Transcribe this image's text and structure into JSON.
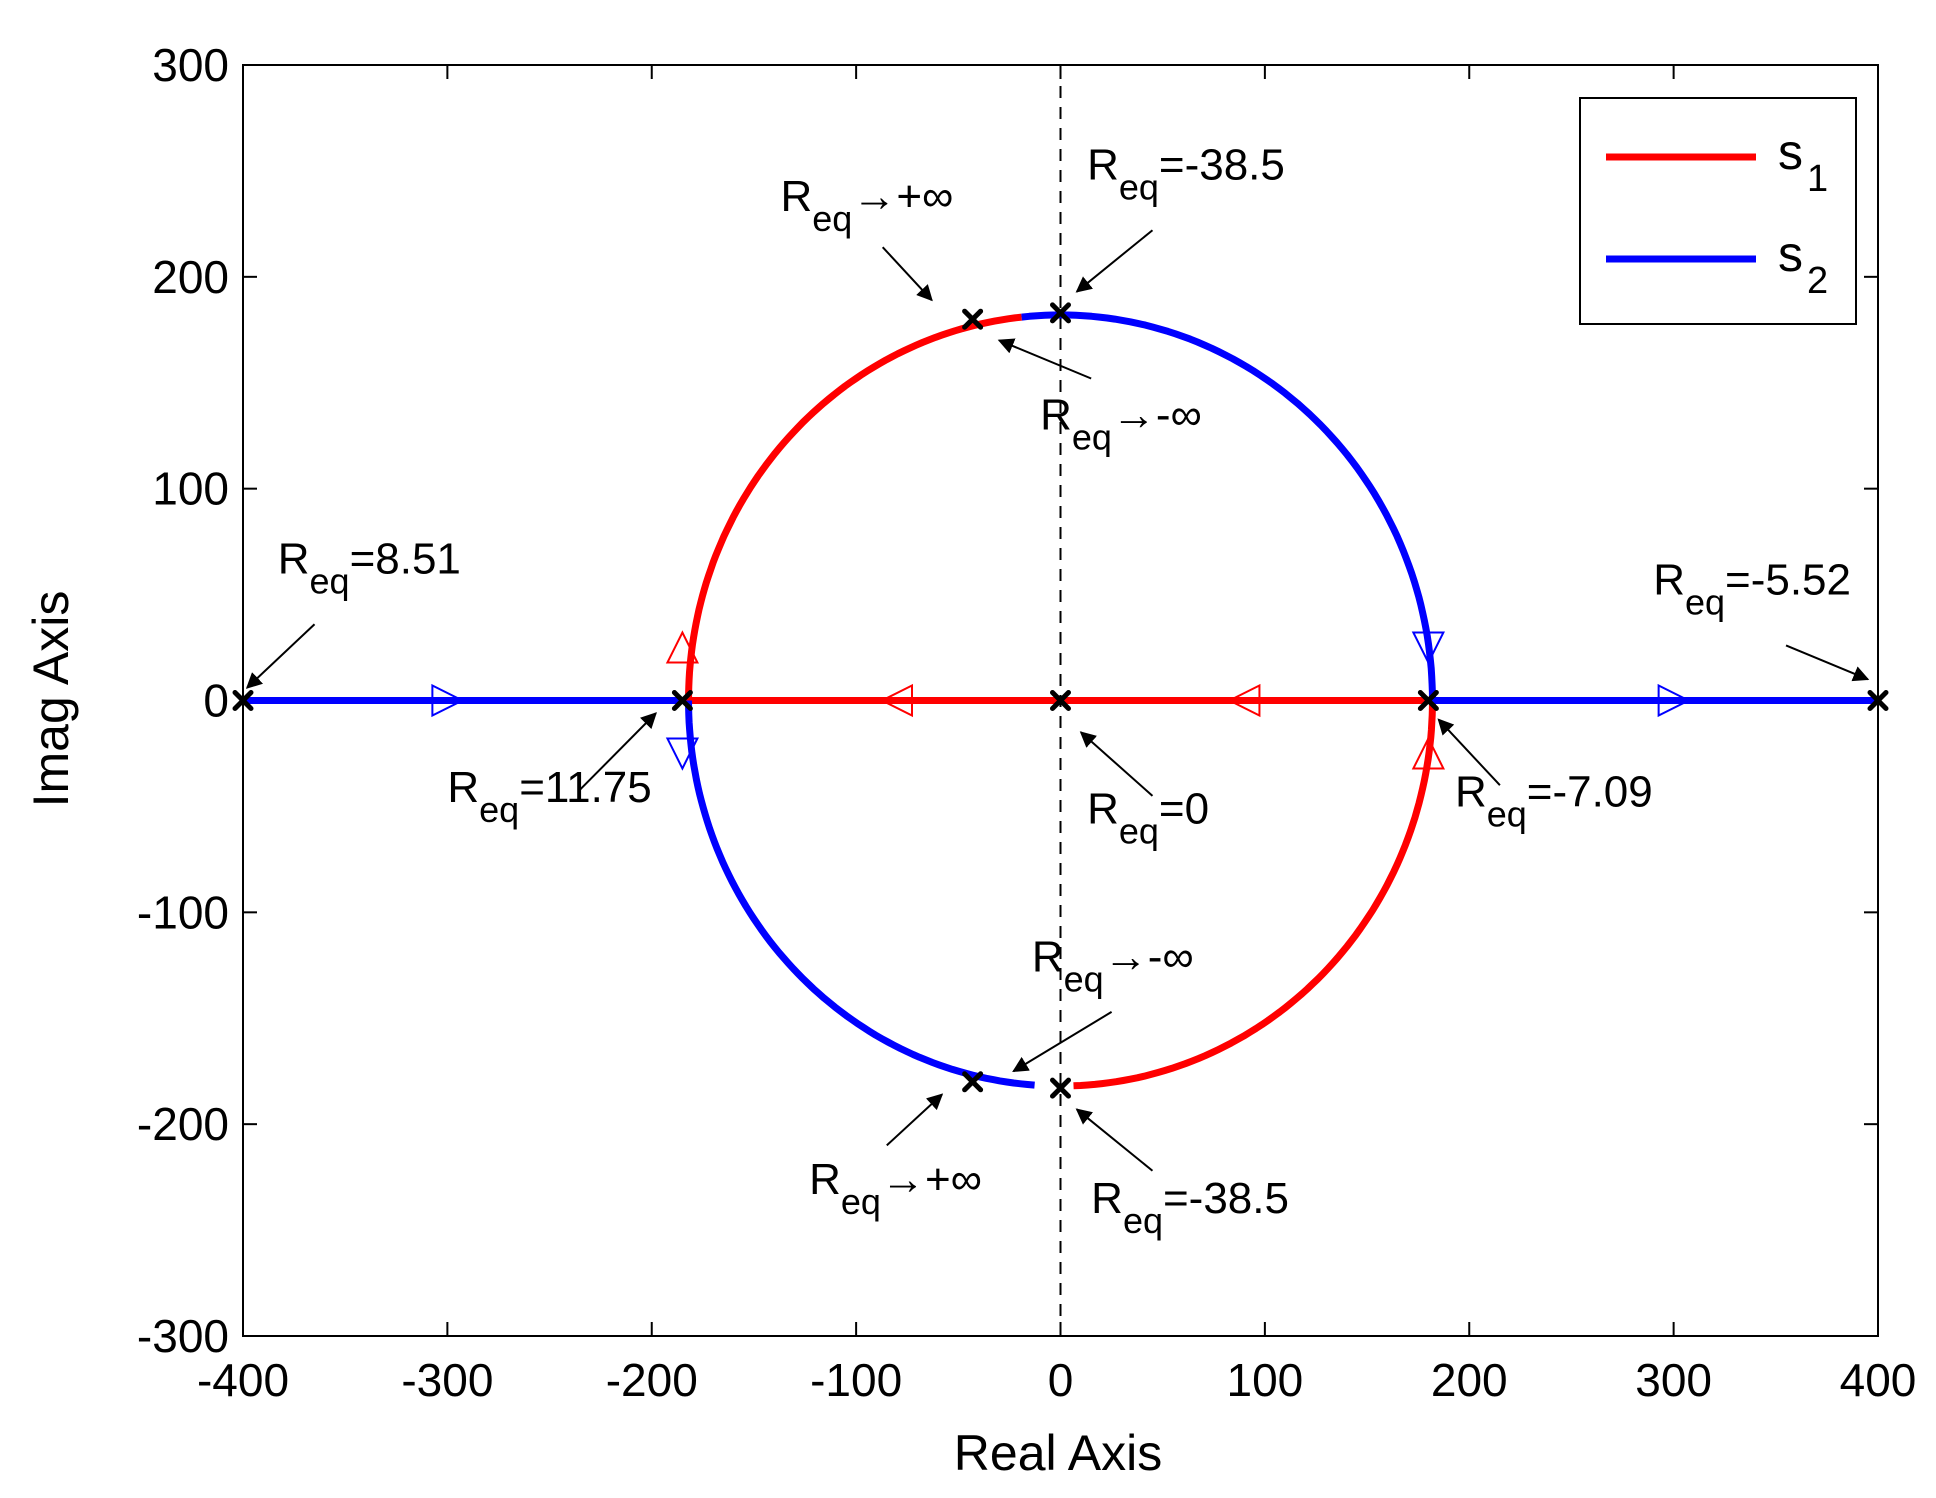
{
  "chart_data": {
    "type": "line",
    "title": "",
    "xlabel": "Real Axis",
    "ylabel": "Imag Axis",
    "xlim": [
      -400,
      400
    ],
    "ylim": [
      -300,
      300
    ],
    "xticks": [
      -400,
      -300,
      -200,
      -100,
      0,
      100,
      200,
      300,
      400
    ],
    "yticks": [
      -300,
      -200,
      -100,
      0,
      100,
      200,
      300
    ],
    "xtick_labels": [
      "-400",
      "-300",
      "-200",
      "-100",
      "0",
      "100",
      "200",
      "300",
      "400"
    ],
    "ytick_labels": [
      "-300",
      "-200",
      "-100",
      "0",
      "100",
      "200",
      "300"
    ],
    "grid": false,
    "legend_position": "top-right",
    "colors": {
      "s1": "#ff0000",
      "s2": "#0000ff",
      "marker": "#000000"
    },
    "series": [
      {
        "name": "s",
        "sub": "1",
        "color": "#ff0000",
        "segments": [
          {
            "kind": "line",
            "points": [
              [
                -185,
                0
              ],
              [
                180,
                0
              ]
            ]
          },
          {
            "kind": "arc",
            "cx": 0,
            "r": 182,
            "from_deg": 180,
            "to_deg": 96
          },
          {
            "kind": "arc",
            "cx": 0,
            "r": 182,
            "from_deg": 0,
            "to_deg": -88
          }
        ],
        "direction_markers": [
          {
            "x": -80,
            "y": 0,
            "dir": "left"
          },
          {
            "x": 90,
            "y": 0,
            "dir": "left"
          },
          {
            "x": -185,
            "y": 25,
            "dir": "up"
          },
          {
            "x": 180,
            "y": -25,
            "dir": "up"
          }
        ]
      },
      {
        "name": "s",
        "sub": "2",
        "color": "#0000ff",
        "segments": [
          {
            "kind": "line",
            "points": [
              [
                -400,
                0
              ],
              [
                -185,
                0
              ]
            ]
          },
          {
            "kind": "line",
            "points": [
              [
                180,
                0
              ],
              [
                400,
                0
              ]
            ]
          },
          {
            "kind": "arc",
            "cx": 0,
            "r": 182,
            "from_deg": 96,
            "to_deg": 0
          },
          {
            "kind": "arc",
            "cx": 0,
            "r": 182,
            "from_deg": 180,
            "to_deg": 266
          }
        ],
        "direction_markers": [
          {
            "x": -300,
            "y": 0,
            "dir": "right"
          },
          {
            "x": 300,
            "y": 0,
            "dir": "right"
          },
          {
            "x": -185,
            "y": -25,
            "dir": "down"
          },
          {
            "x": 180,
            "y": 25,
            "dir": "down"
          }
        ]
      }
    ],
    "zero_line": {
      "x": 0,
      "style": "dashed"
    },
    "points": [
      {
        "x": -400,
        "y": 0
      },
      {
        "x": -185,
        "y": 0
      },
      {
        "x": 0,
        "y": 0
      },
      {
        "x": 180,
        "y": 0
      },
      {
        "x": 400,
        "y": 0
      },
      {
        "x": -43,
        "y": 180
      },
      {
        "x": 0,
        "y": 183
      },
      {
        "x": -43,
        "y": -180
      },
      {
        "x": 0,
        "y": -183
      }
    ],
    "annotations": [
      {
        "base": "R",
        "sub": "eq",
        "rest": "=8.51",
        "tx": -383,
        "ty": 60,
        "ax1": -365,
        "ay1": 36,
        "ax2": -398,
        "ay2": 6
      },
      {
        "base": "R",
        "sub": "eq",
        "rest": "=11.75",
        "tx": -300,
        "ty": -48,
        "ax1": -235,
        "ay1": -42,
        "ax2": -198,
        "ay2": -6
      },
      {
        "base": "R",
        "sub": "eq",
        "rest": "=0",
        "tx": 13,
        "ty": -58,
        "ax1": 45,
        "ay1": -45,
        "ax2": 10,
        "ay2": -15
      },
      {
        "base": "R",
        "sub": "eq",
        "rest": "=-7.09",
        "tx": 193,
        "ty": -50,
        "ax1": 215,
        "ay1": -40,
        "ax2": 185,
        "ay2": -9
      },
      {
        "base": "R",
        "sub": "eq",
        "rest": "=-5.52",
        "tx": 290,
        "ty": 50,
        "ax1": 355,
        "ay1": 26,
        "ax2": 395,
        "ay2": 10
      },
      {
        "base": "R",
        "sub": "eq",
        "rest": "→+∞",
        "tx": -137,
        "ty": 231,
        "ax1": -87,
        "ay1": 214,
        "ax2": -63,
        "ay2": 189
      },
      {
        "base": "R",
        "sub": "eq",
        "rest": "=-38.5",
        "tx": 13,
        "ty": 246,
        "ax1": 45,
        "ay1": 222,
        "ax2": 8,
        "ay2": 193
      },
      {
        "base": "R",
        "sub": "eq",
        "rest": "→-∞",
        "tx": -10,
        "ty": 128,
        "ax1": 15,
        "ay1": 152,
        "ax2": -30,
        "ay2": 170
      },
      {
        "base": "R",
        "sub": "eq",
        "rest": "→-∞",
        "tx": -14,
        "ty": -128,
        "ax1": 25,
        "ay1": -147,
        "ax2": -23,
        "ay2": -175
      },
      {
        "base": "R",
        "sub": "eq",
        "rest": "→+∞",
        "tx": -123,
        "ty": -233,
        "ax1": -85,
        "ay1": -210,
        "ax2": -58,
        "ay2": -186
      },
      {
        "base": "R",
        "sub": "eq",
        "rest": "=-38.5",
        "tx": 15,
        "ty": -242,
        "ax1": 45,
        "ay1": -222,
        "ax2": 8,
        "ay2": -193
      }
    ],
    "legend": [
      {
        "label": "s",
        "sub": "1",
        "color": "#ff0000"
      },
      {
        "label": "s",
        "sub": "2",
        "color": "#0000ff"
      }
    ]
  }
}
